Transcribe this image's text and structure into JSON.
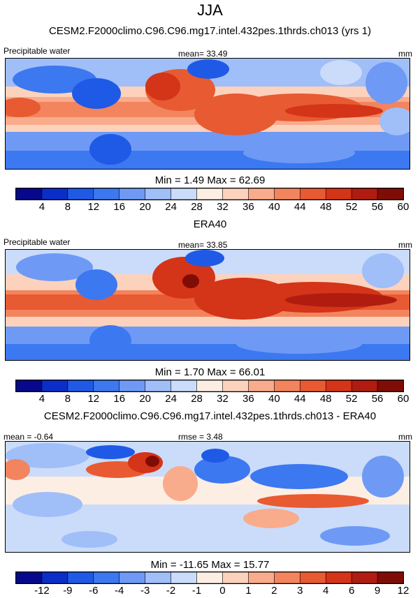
{
  "figure": {
    "title": "JJA"
  },
  "palettes": {
    "full": [
      "#08088c",
      "#0a2ec8",
      "#1e5ae6",
      "#3c78f0",
      "#6e9af5",
      "#a0bef8",
      "#cadcfa",
      "#fdeee4",
      "#fcd2bd",
      "#f8ac8c",
      "#f2845e",
      "#e85a32",
      "#d43418",
      "#b01c10",
      "#800c06"
    ],
    "diff": [
      "#08088c",
      "#0a2ec8",
      "#1e5ae6",
      "#3c78f0",
      "#6e9af5",
      "#a0bef8",
      "#cadcfa",
      "#fdeee4",
      "#fcd2bd",
      "#f8ac8c",
      "#f2845e",
      "#e85a32",
      "#d43418",
      "#b01c10",
      "#800c06"
    ]
  },
  "panels": [
    {
      "title": "CESM2.F2000climo.C96.C96.mg17.intel.432pes.1thrds.ch013 (yrs 1)",
      "left_label": "Precipitable water",
      "center_label": "mean=  33.49",
      "right_label": "mm",
      "min_max": "Min =    1.49 Max =  62.69",
      "palette": "full",
      "ticks": [
        "4",
        "8",
        "12",
        "16",
        "20",
        "24",
        "28",
        "32",
        "36",
        "40",
        "44",
        "48",
        "52",
        "56",
        "60"
      ]
    },
    {
      "title": "ERA40",
      "left_label": "Precipitable water",
      "center_label": "mean=  33.85",
      "right_label": "mm",
      "min_max": "Min =    1.70 Max =  66.01",
      "palette": "full",
      "ticks": [
        "4",
        "8",
        "12",
        "16",
        "20",
        "24",
        "28",
        "32",
        "36",
        "40",
        "44",
        "48",
        "52",
        "56",
        "60"
      ]
    },
    {
      "title": "CESM2.F2000climo.C96.C96.mg17.intel.432pes.1thrds.ch013 - ERA40",
      "left_label": "mean =  -0.64",
      "center_label": "rmse =   3.48",
      "right_label": "mm",
      "min_max": "Min = -11.65 Max =  15.77",
      "palette": "diff",
      "ticks": [
        "-12",
        "-9",
        "-6",
        "-4",
        "-3",
        "-2",
        "-1",
        "0",
        "1",
        "2",
        "3",
        "4",
        "6",
        "9",
        "12"
      ]
    }
  ],
  "chart_data": [
    {
      "type": "heatmap",
      "title": "CESM2.F2000climo.C96.C96.mg17.intel.432pes.1thrds.ch013 (yrs 1)",
      "variable": "Precipitable water",
      "units": "mm",
      "mean": 33.49,
      "min": 1.49,
      "max": 62.69,
      "levels": [
        4,
        8,
        12,
        16,
        20,
        24,
        28,
        32,
        36,
        40,
        44,
        48,
        52,
        56,
        60
      ]
    },
    {
      "type": "heatmap",
      "title": "ERA40",
      "variable": "Precipitable water",
      "units": "mm",
      "mean": 33.85,
      "min": 1.7,
      "max": 66.01,
      "levels": [
        4,
        8,
        12,
        16,
        20,
        24,
        28,
        32,
        36,
        40,
        44,
        48,
        52,
        56,
        60
      ]
    },
    {
      "type": "heatmap",
      "title": "CESM2.F2000climo.C96.C96.mg17.intel.432pes.1thrds.ch013 - ERA40",
      "units": "mm",
      "mean": -0.64,
      "rmse": 3.48,
      "min": -11.65,
      "max": 15.77,
      "levels": [
        -12,
        -9,
        -6,
        -4,
        -3,
        -2,
        -1,
        0,
        1,
        2,
        3,
        4,
        6,
        9,
        12
      ]
    }
  ]
}
